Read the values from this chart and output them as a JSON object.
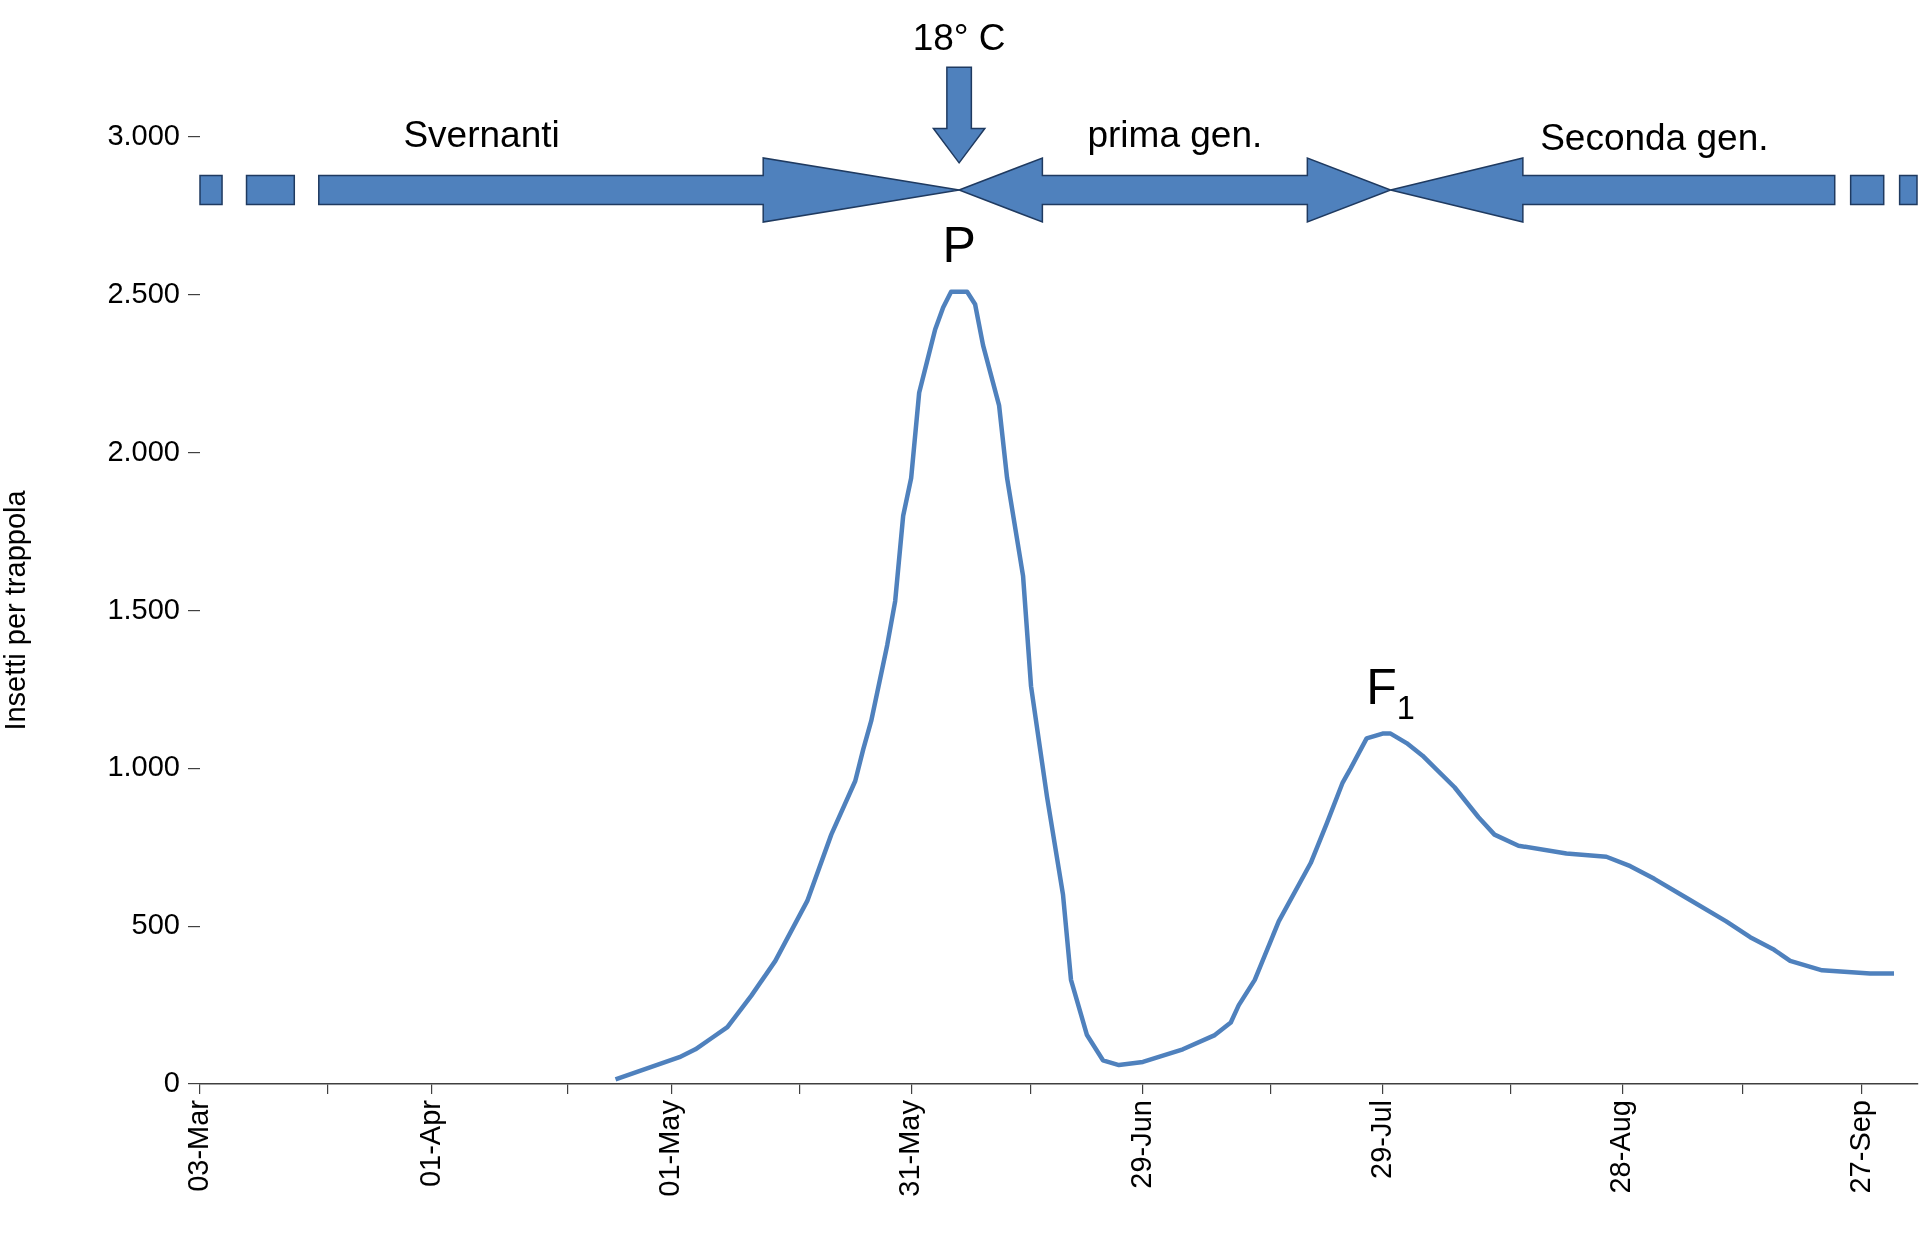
{
  "chart_data": {
    "type": "line",
    "ylabel": "Insetti per trappola",
    "x": [
      "--04-24",
      "--05-02",
      "--05-04",
      "--05-06",
      "--05-08",
      "--05-11",
      "--05-14",
      "--05-18",
      "--05-21",
      "--05-24",
      "--05-25",
      "--05-26",
      "--05-28",
      "--05-29",
      "--05-30",
      "--05-31",
      "--06-01",
      "--06-02",
      "--06-03",
      "--06-04",
      "--06-05",
      "--06-07",
      "--06-08",
      "--06-09",
      "--06-11",
      "--06-12",
      "--06-14",
      "--06-15",
      "--06-17",
      "--06-19",
      "--06-20",
      "--06-22",
      "--06-24",
      "--06-26",
      "--06-29",
      "--07-04",
      "--07-08",
      "--07-10",
      "--07-11",
      "--07-13",
      "--07-16",
      "--07-20",
      "--07-22",
      "--07-24",
      "--07-25",
      "--07-27",
      "--07-29",
      "--07-30",
      "--08-01",
      "--08-03",
      "--08-07",
      "--08-10",
      "--08-12",
      "--08-15",
      "--08-21",
      "--08-26",
      "--08-29",
      "--09-01",
      "--09-05",
      "--09-10",
      "--09-13",
      "--09-16",
      "--09-18",
      "--09-22",
      "--09-28",
      "--10-01"
    ],
    "series": [
      {
        "color": "#4f81bd",
        "values": [
          15,
          85,
          110,
          145,
          180,
          280,
          390,
          580,
          790,
          960,
          1060,
          1150,
          1390,
          1530,
          1800,
          1920,
          2190,
          2290,
          2390,
          2460,
          2510,
          2510,
          2470,
          2340,
          2150,
          1920,
          1610,
          1260,
          910,
          600,
          330,
          155,
          75,
          60,
          70,
          110,
          155,
          195,
          250,
          330,
          515,
          700,
          825,
          955,
          1000,
          1095,
          1110,
          1110,
          1080,
          1040,
          940,
          845,
          790,
          755,
          730,
          720,
          690,
          650,
          590,
          515,
          465,
          425,
          390,
          360,
          350,
          350
        ]
      }
    ],
    "xlim": [
      "--03-03",
      "--10-04"
    ],
    "xticks": [
      {
        "value": "--03-03",
        "label": "03-Mar"
      },
      {
        "value": "--03-19",
        "label": null
      },
      {
        "value": "--04-01",
        "label": "01-Apr"
      },
      {
        "value": "--04-18",
        "label": null
      },
      {
        "value": "--05-01",
        "label": "01-May"
      },
      {
        "value": "--05-17",
        "label": null
      },
      {
        "value": "--05-31",
        "label": "31-May"
      },
      {
        "value": "--06-15",
        "label": null
      },
      {
        "value": "--06-29",
        "label": "29-Jun"
      },
      {
        "value": "--07-15",
        "label": null
      },
      {
        "value": "--07-29",
        "label": "29-Jul"
      },
      {
        "value": "--08-14",
        "label": null
      },
      {
        "value": "--08-28",
        "label": "28-Aug"
      },
      {
        "value": "--09-12",
        "label": null
      },
      {
        "value": "--09-27",
        "label": "27-Sep"
      }
    ],
    "ylim": [
      0,
      3000
    ],
    "yticks": [
      0,
      500,
      {
        "value": 1000,
        "label": "1.000"
      },
      {
        "value": 1500,
        "label": "1.500"
      },
      {
        "value": 2000,
        "label": "2.000"
      },
      {
        "value": 2500,
        "label": "2.500"
      },
      {
        "value": 3000,
        "label": "3.000"
      }
    ],
    "grid": false,
    "legend": false,
    "marker": "none",
    "line_style": "solid",
    "annotations": [
      "18° C",
      "Svernanti",
      "prima gen.",
      "Seconda gen.",
      {
        "text": "P",
        "x": "--06-06",
        "y": 2510
      },
      {
        "text": "F$_{1}$",
        "x": "--07-30",
        "y": 1110
      }
    ]
  }
}
